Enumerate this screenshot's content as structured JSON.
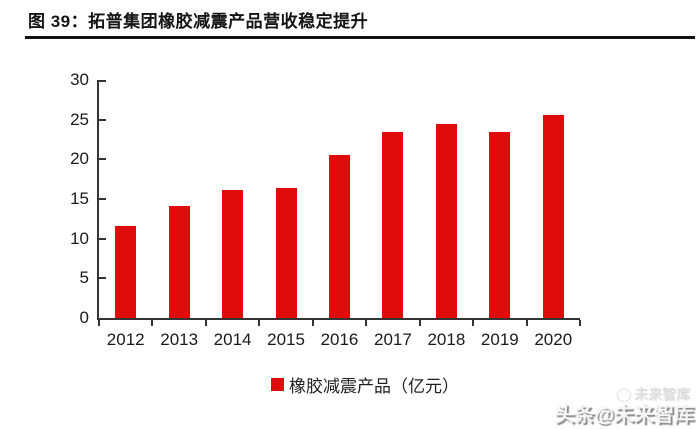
{
  "figure": {
    "title": "图 39：拓普集团橡胶减震产品营收稳定提升"
  },
  "chart_data": {
    "type": "bar",
    "title": "拓普集团橡胶减震产品营收稳定提升",
    "categories": [
      "2012",
      "2013",
      "2014",
      "2015",
      "2016",
      "2017",
      "2018",
      "2019",
      "2020"
    ],
    "values": [
      11.6,
      14.1,
      16.1,
      16.4,
      20.5,
      23.4,
      24.4,
      23.5,
      25.6
    ],
    "series_name": "橡胶减震产品（亿元）",
    "xlabel": "",
    "ylabel": "",
    "ylim": [
      0,
      30
    ],
    "yticks": [
      0,
      5,
      10,
      15,
      20,
      25,
      30
    ],
    "grid": false,
    "legend_position": "bottom",
    "bar_color": "#e00c0c"
  },
  "legend": {
    "label": "橡胶减震产品（亿元）"
  },
  "watermark": {
    "ghost": "未来智库",
    "main": "头条@未来智库"
  },
  "colors": {
    "bar": "#e00c0c",
    "axis": "#333333",
    "title_text": "#141414",
    "rule": "#111111"
  }
}
